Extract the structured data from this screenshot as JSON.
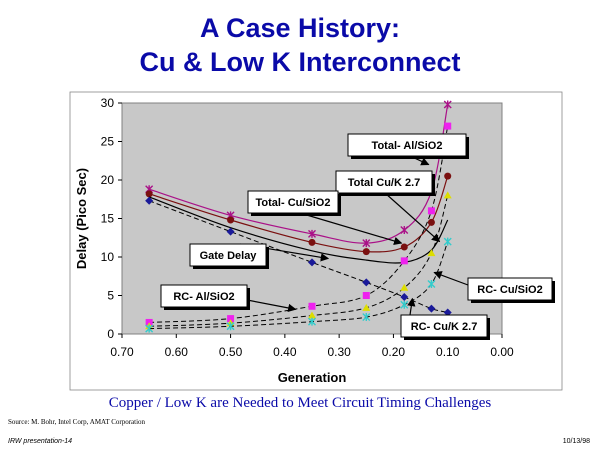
{
  "slide": {
    "title_line1": "A Case History:",
    "title_line2": "Cu & Low K Interconnect",
    "caption": "Copper / Low K are Needed to Meet Circuit Timing Challenges",
    "source": "Source: M. Bohr, Intel Corp, AMAT Corporation",
    "footer_left": "IRW presentation-14",
    "footer_right": "10/13/98"
  },
  "chart_data": {
    "type": "scatter",
    "title": "",
    "xlabel": "Generation",
    "ylabel": "Delay (Pico Sec)",
    "xlim": [
      0.7,
      0.0
    ],
    "ylim": [
      0,
      30
    ],
    "xticks": [
      0.7,
      0.6,
      0.5,
      0.4,
      0.3,
      0.2,
      0.1,
      0.0
    ],
    "yticks": [
      0,
      5,
      10,
      15,
      20,
      25,
      30
    ],
    "grid": false,
    "series": [
      {
        "name": "Total- Al/SiO2",
        "color": "#aa1188",
        "marker": "star",
        "line": "solid",
        "x": [
          0.65,
          0.5,
          0.35,
          0.25,
          0.18,
          0.13,
          0.1
        ],
        "y": [
          18.8,
          15.4,
          13.0,
          11.8,
          13.5,
          18.5,
          29.8
        ]
      },
      {
        "name": "Total- Cu/SiO2",
        "color": "#7a1010",
        "marker": "circle",
        "line": "solid",
        "x": [
          0.65,
          0.5,
          0.35,
          0.25,
          0.18,
          0.13,
          0.1
        ],
        "y": [
          18.2,
          14.8,
          11.9,
          10.7,
          11.3,
          14.5,
          20.5
        ]
      },
      {
        "name": "Total Cu/K 2.7",
        "color": "#000000",
        "marker": "none",
        "line": "solid",
        "x": [
          0.65,
          0.5,
          0.35,
          0.25,
          0.18,
          0.13,
          0.1
        ],
        "y": [
          17.8,
          13.8,
          10.8,
          9.6,
          9.3,
          10.9,
          14.8
        ]
      },
      {
        "name": "Gate Delay",
        "color": "#1a1a99",
        "marker": "diamond",
        "line": "dashed",
        "x": [
          0.65,
          0.5,
          0.35,
          0.25,
          0.18,
          0.13,
          0.1
        ],
        "y": [
          17.3,
          13.3,
          9.3,
          6.7,
          4.8,
          3.3,
          2.8
        ]
      },
      {
        "name": "RC- Al/SiO2",
        "color": "#ee22ee",
        "marker": "square",
        "line": "dashed",
        "x": [
          0.65,
          0.5,
          0.35,
          0.25,
          0.18,
          0.13,
          0.1
        ],
        "y": [
          1.5,
          2.0,
          3.6,
          5.0,
          9.5,
          16.0,
          27.0
        ]
      },
      {
        "name": "RC- Cu/SiO2",
        "color": "#dddd00",
        "marker": "triangle",
        "line": "dashed",
        "x": [
          0.65,
          0.5,
          0.35,
          0.25,
          0.18,
          0.13,
          0.1
        ],
        "y": [
          1.0,
          1.4,
          2.4,
          3.4,
          6.0,
          10.5,
          18.0
        ]
      },
      {
        "name": "RC- Cu/K 2.7",
        "color": "#33cccc",
        "marker": "star",
        "line": "dashed",
        "x": [
          0.65,
          0.5,
          0.35,
          0.25,
          0.18,
          0.13,
          0.1
        ],
        "y": [
          0.7,
          1.0,
          1.6,
          2.2,
          3.8,
          6.5,
          12.0
        ]
      }
    ],
    "annotations": [
      {
        "text": "Total- Al/SiO2",
        "series": "Total- Al/SiO2"
      },
      {
        "text": "Total Cu/K 2.7",
        "series": "Total Cu/K 2.7"
      },
      {
        "text": "Total- Cu/SiO2",
        "series": "Total- Cu/SiO2"
      },
      {
        "text": "Gate Delay",
        "series": "Gate Delay"
      },
      {
        "text": "RC- Al/SiO2",
        "series": "RC- Al/SiO2"
      },
      {
        "text": "RC- Cu/SiO2",
        "series": "RC- Cu/SiO2"
      },
      {
        "text": "RC- Cu/K 2.7",
        "series": "RC- Cu/K 2.7"
      }
    ]
  }
}
